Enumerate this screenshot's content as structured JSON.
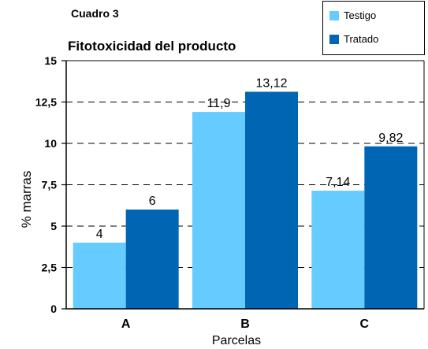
{
  "chart_data": {
    "type": "bar",
    "supertitle": "Cuadro 3",
    "title": "Fitotoxicidad del producto",
    "xlabel": "Parcelas",
    "ylabel": "% marras",
    "categories": [
      "A",
      "B",
      "C"
    ],
    "series": [
      {
        "name": "Testigo",
        "values": [
          4,
          11.9,
          7.14
        ],
        "labels": [
          "4",
          "11,9",
          "7,14"
        ],
        "color": "#66ccff"
      },
      {
        "name": "Tratado",
        "values": [
          6,
          13.12,
          9.82
        ],
        "labels": [
          "6",
          "13,12",
          "9,82"
        ],
        "color": "#0066b3"
      }
    ],
    "ylim": [
      0,
      15
    ],
    "yticks": [
      0,
      2.5,
      5,
      7.5,
      10,
      12.5,
      15
    ],
    "ytick_labels": [
      "0",
      "2,5",
      "5",
      "7,5",
      "10",
      "12,5",
      "15"
    ],
    "grid": "dashed horizontal",
    "legend_position": "top-right"
  }
}
